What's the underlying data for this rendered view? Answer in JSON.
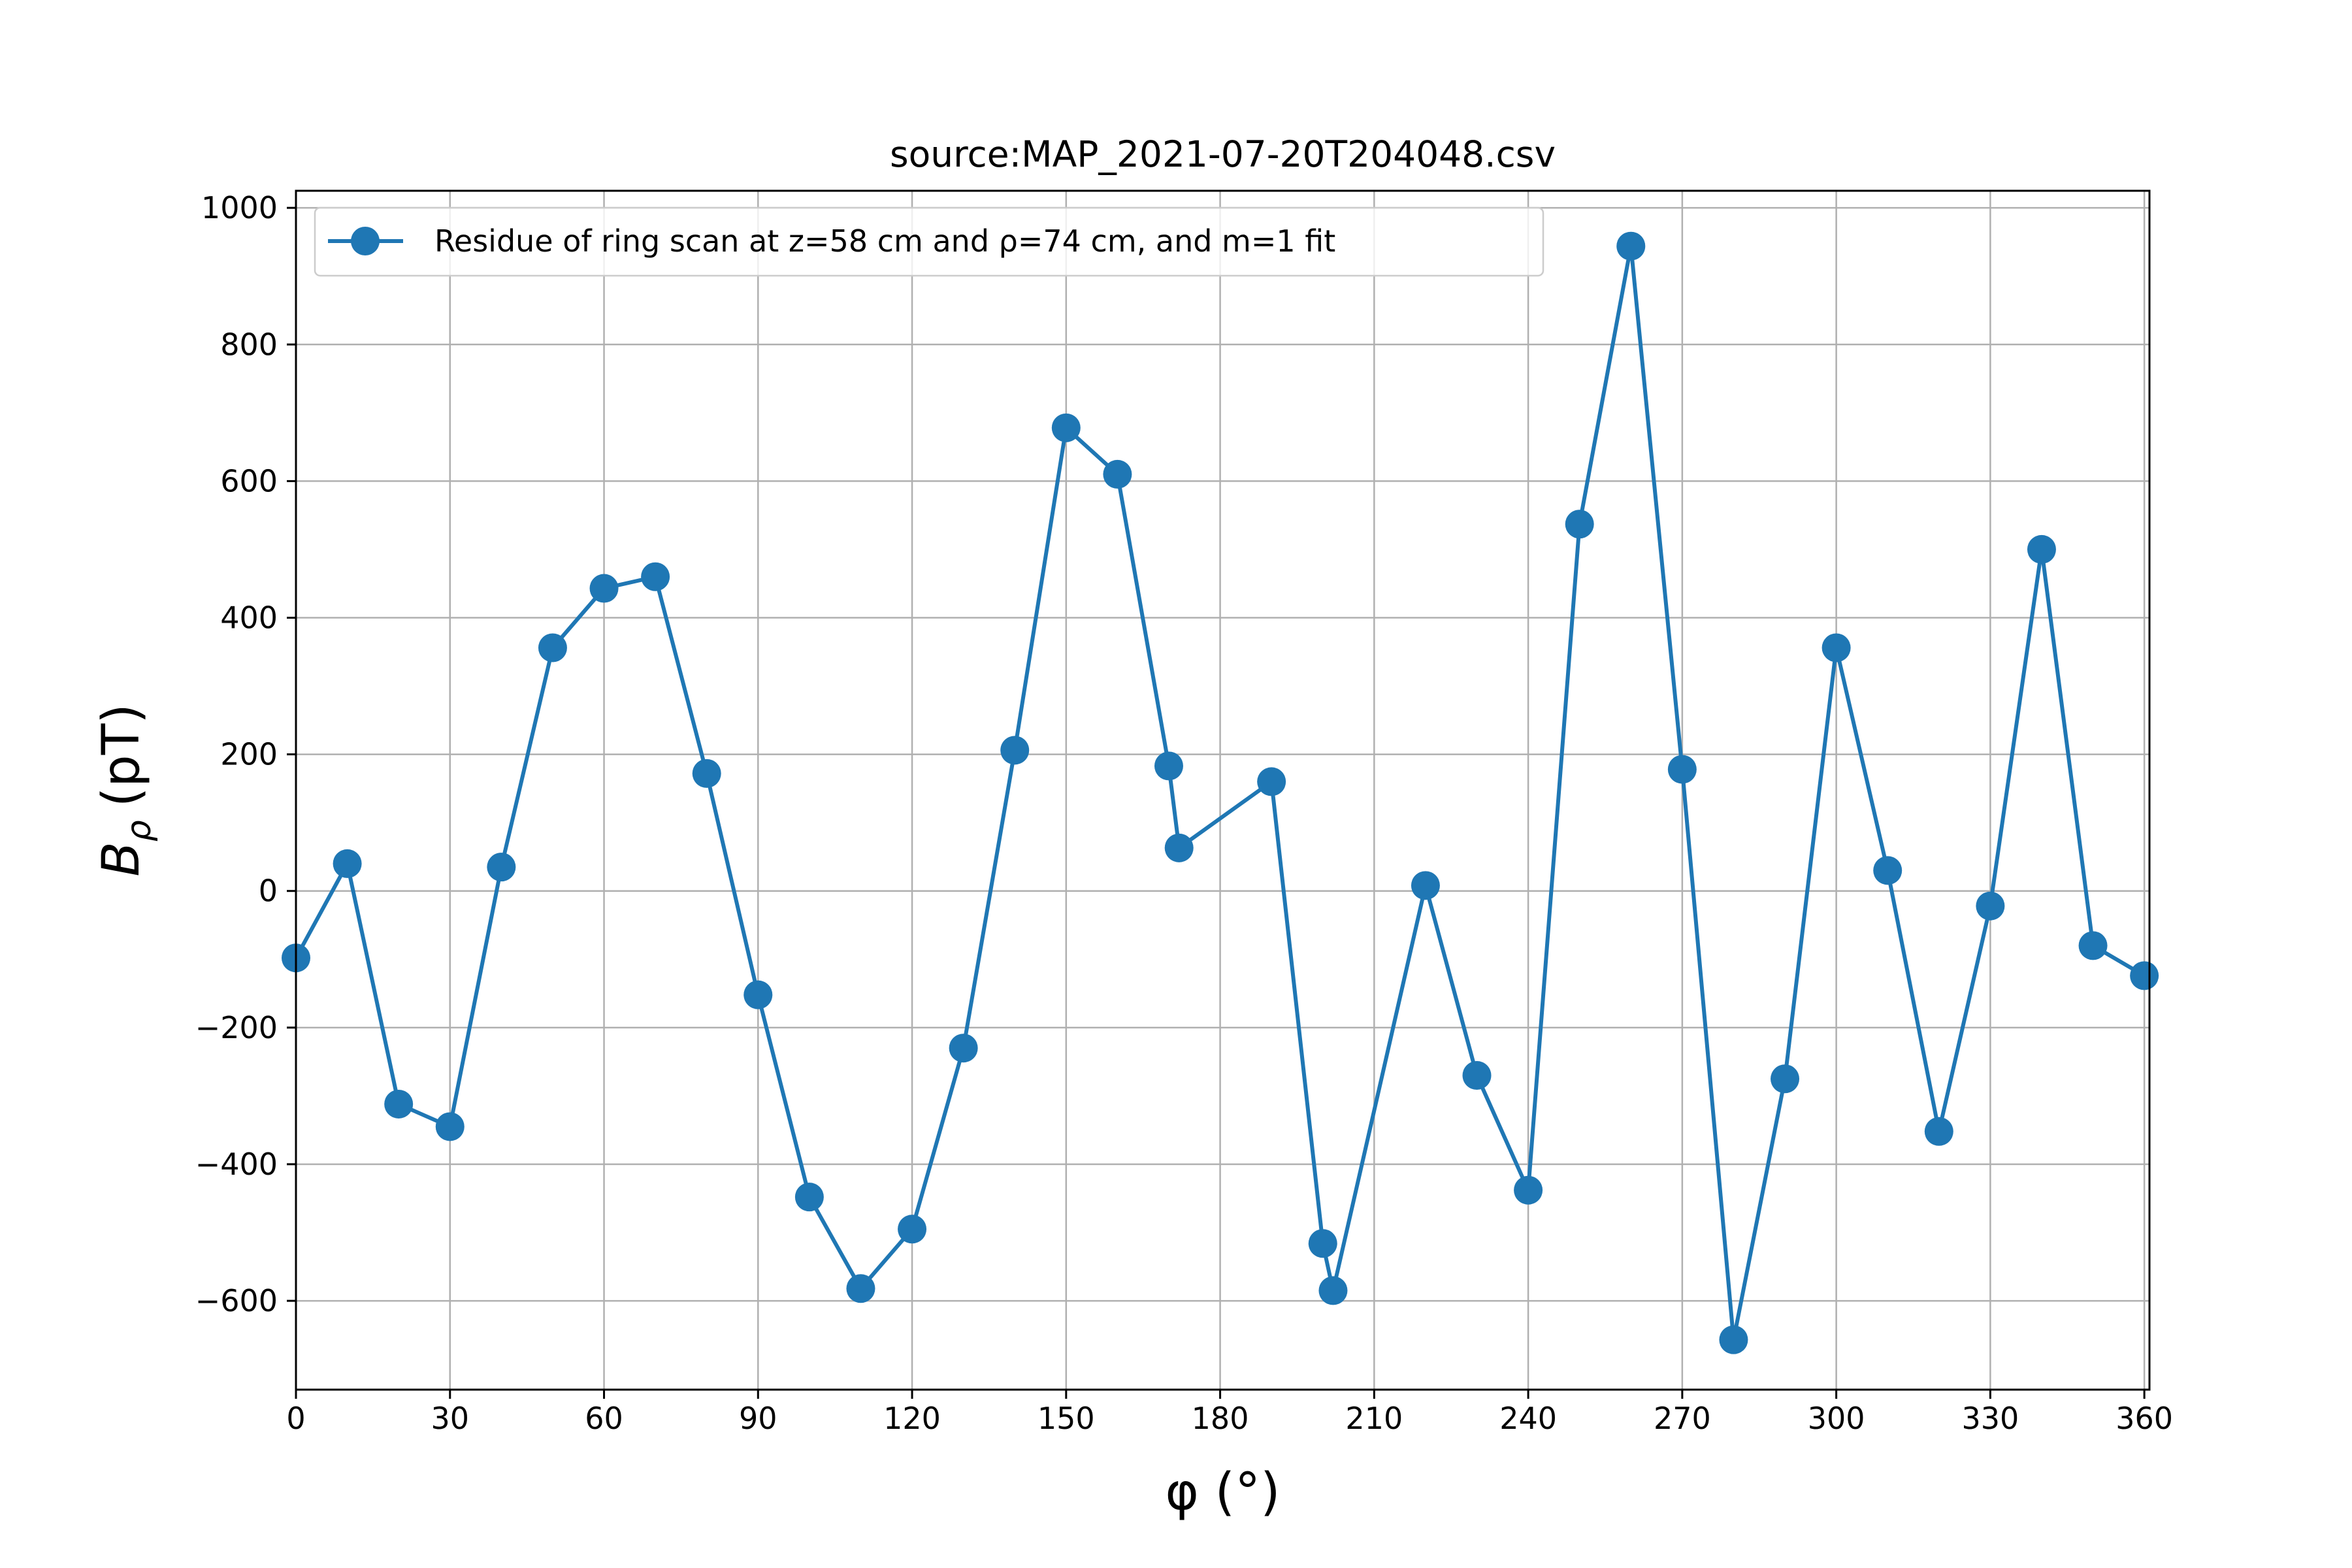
{
  "chart_data": {
    "type": "line",
    "title": "source:MAP_2021-07-20T204048.csv",
    "xlabel": "φ (°)",
    "ylabel_main": "B",
    "ylabel_sub": "ρ",
    "ylabel_unit": "(pT)",
    "xlim": [
      0,
      361
    ],
    "ylim": [
      -730,
      1025
    ],
    "xticks": [
      0,
      30,
      60,
      90,
      120,
      150,
      180,
      210,
      240,
      270,
      300,
      330,
      360
    ],
    "yticks": [
      -600,
      -400,
      -200,
      0,
      200,
      400,
      600,
      800,
      1000
    ],
    "ytick_labels": [
      "−600",
      "−400",
      "−200",
      "0",
      "200",
      "400",
      "600",
      "800",
      "1000"
    ],
    "grid": true,
    "legend_position": "top-left",
    "series": [
      {
        "name": "Residue of ring scan at z=58 cm and ρ=74 cm, and m=1 fit",
        "color": "#1f77b4",
        "x": [
          0,
          10,
          20,
          30,
          40,
          50,
          60,
          70,
          80,
          90,
          100,
          110,
          120,
          130,
          140,
          150,
          160,
          170,
          172,
          190,
          200,
          202,
          220,
          230,
          240,
          250,
          260,
          270,
          280,
          290,
          300,
          310,
          320,
          330,
          340,
          350,
          360
        ],
        "y": [
          -98,
          40,
          -312,
          -345,
          35,
          356,
          443,
          460,
          172,
          -152,
          -448,
          -582,
          -495,
          -230,
          206,
          678,
          610,
          183,
          63,
          160,
          -516,
          -585,
          8,
          -270,
          -438,
          537,
          944,
          178,
          -657,
          -275,
          356,
          30,
          -352,
          -22,
          500,
          -80,
          -124
        ]
      }
    ]
  }
}
